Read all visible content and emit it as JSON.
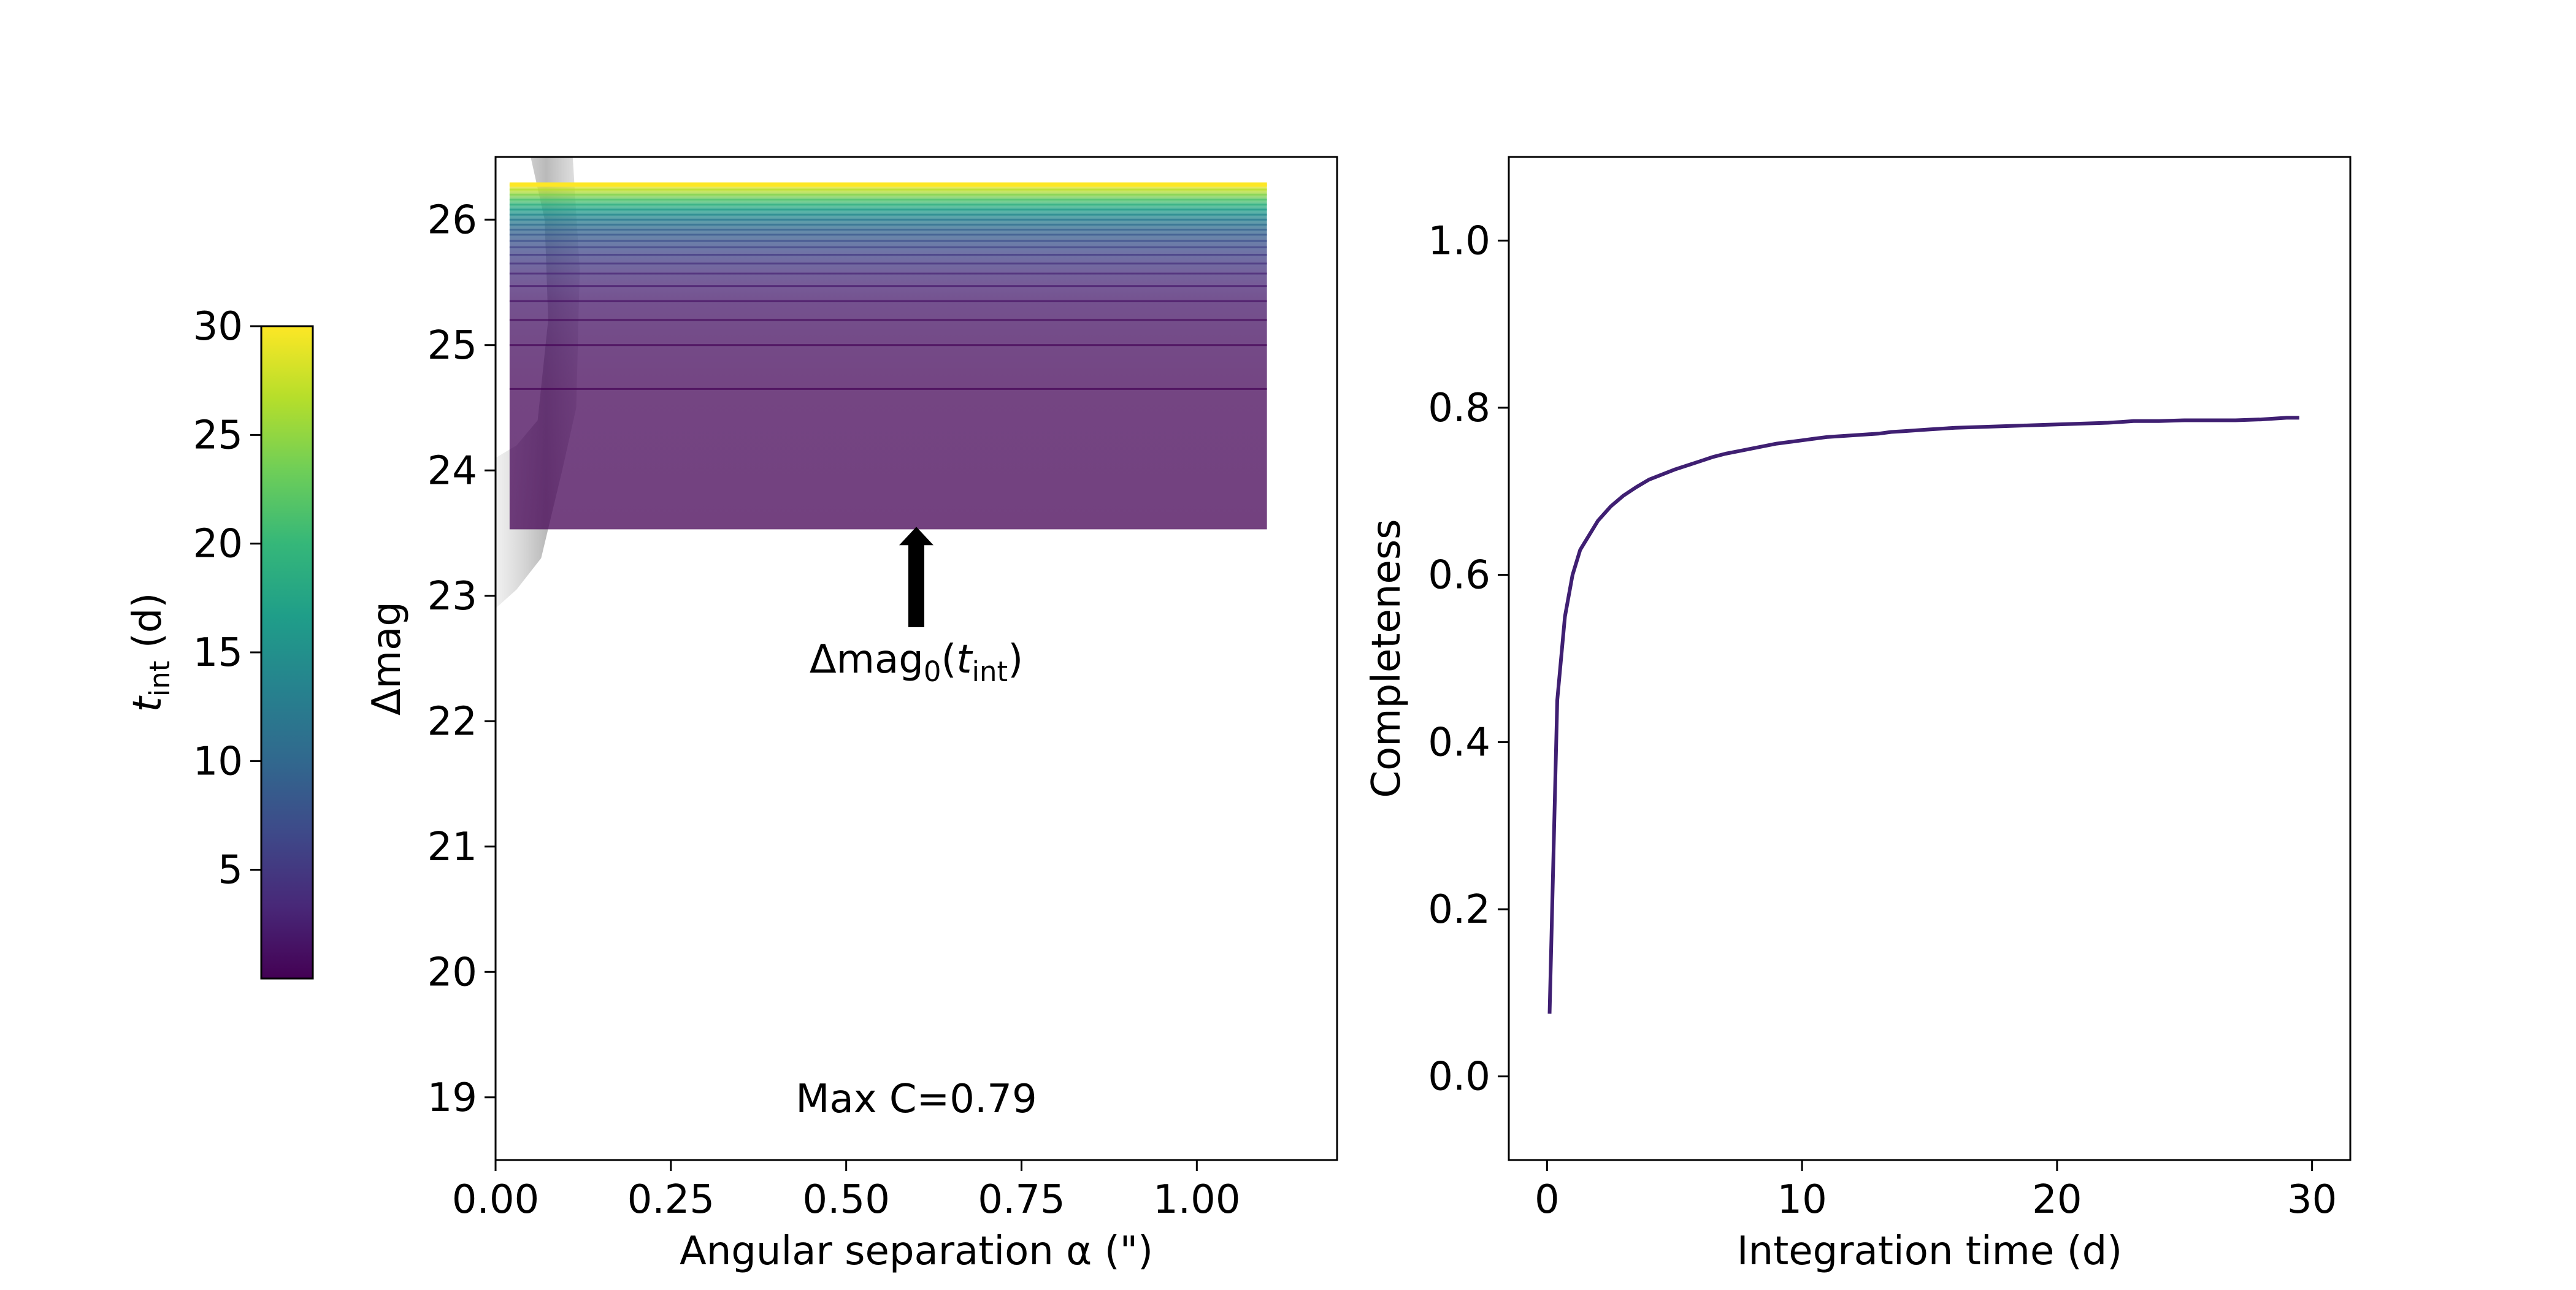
{
  "chart_data": [
    {
      "type": "heatmap",
      "xlabel": "Angular separation α  (\")",
      "ylabel": "Δmag",
      "xlim": [
        0.0,
        1.2
      ],
      "ylim": [
        18.5,
        26.5
      ],
      "xticks": [
        0.0,
        0.25,
        0.5,
        0.75,
        1.0
      ],
      "xtick_labels": [
        "0.00",
        "0.25",
        "0.50",
        "0.75",
        "1.00"
      ],
      "yticks": [
        19,
        20,
        21,
        22,
        23,
        24,
        25,
        26
      ],
      "ytick_labels": [
        "19",
        "20",
        "21",
        "22",
        "23",
        "24",
        "25",
        "26"
      ],
      "band": {
        "x_range": [
          0.02,
          1.1
        ],
        "dmag_bottom": 23.53,
        "dmag_top": 26.28,
        "stripe_levels": [
          {
            "dmag": 24.65,
            "t_int": 0.5
          },
          {
            "dmag": 25.0,
            "t_int": 1.0
          },
          {
            "dmag": 25.2,
            "t_int": 1.5
          },
          {
            "dmag": 25.35,
            "t_int": 2.0
          },
          {
            "dmag": 25.47,
            "t_int": 3.0
          },
          {
            "dmag": 25.57,
            "t_int": 4.0
          },
          {
            "dmag": 25.65,
            "t_int": 5.0
          },
          {
            "dmag": 25.72,
            "t_int": 6.0
          },
          {
            "dmag": 25.78,
            "t_int": 7.0
          },
          {
            "dmag": 25.83,
            "t_int": 8.0
          },
          {
            "dmag": 25.88,
            "t_int": 9.0
          },
          {
            "dmag": 25.92,
            "t_int": 10.0
          },
          {
            "dmag": 25.96,
            "t_int": 11.5
          },
          {
            "dmag": 26.0,
            "t_int": 13.0
          },
          {
            "dmag": 26.04,
            "t_int": 15.0
          },
          {
            "dmag": 26.08,
            "t_int": 17.0
          },
          {
            "dmag": 26.12,
            "t_int": 19.5
          },
          {
            "dmag": 26.16,
            "t_int": 22.0
          },
          {
            "dmag": 26.2,
            "t_int": 25.0
          },
          {
            "dmag": 26.24,
            "t_int": 27.5
          },
          {
            "dmag": 26.28,
            "t_int": 30.0
          }
        ]
      },
      "annotation_label": "Δmag",
      "annotation_sub": "0",
      "annotation_paren_open": "(",
      "annotation_t": "t",
      "annotation_t_sub": "int",
      "annotation_paren_close": ")",
      "annotation_arrow": {
        "x": 0.6,
        "dmag_tail": 22.75,
        "dmag_head": 23.55
      },
      "max_c_text": "Max C=0.79",
      "max_c_pos": {
        "x": 0.6,
        "dmag": 18.99
      },
      "grey_density_outline": [
        [
          0.05,
          26.5
        ],
        [
          0.11,
          26.5
        ],
        [
          0.12,
          25.6
        ],
        [
          0.115,
          24.5
        ],
        [
          0.095,
          24.0
        ],
        [
          0.065,
          23.3
        ],
        [
          0.03,
          23.05
        ],
        [
          0.0,
          22.9
        ],
        [
          0.0,
          24.1
        ],
        [
          0.03,
          24.2
        ],
        [
          0.06,
          24.4
        ],
        [
          0.075,
          25.2
        ],
        [
          0.07,
          26.0
        ],
        [
          0.05,
          26.5
        ]
      ]
    },
    {
      "type": "line",
      "xlabel": "Integration time (d)",
      "ylabel": "Completeness",
      "xlim": [
        -1.5,
        31.5
      ],
      "ylim": [
        -0.1,
        1.1
      ],
      "xticks": [
        0,
        10,
        20,
        30
      ],
      "xtick_labels": [
        "0",
        "10",
        "20",
        "30"
      ],
      "yticks": [
        0.0,
        0.2,
        0.4,
        0.6,
        0.8,
        1.0
      ],
      "ytick_labels": [
        "0.0",
        "0.2",
        "0.4",
        "0.6",
        "0.8",
        "1.0"
      ],
      "color": "#3f1f72",
      "x": [
        0.1,
        0.4,
        0.7,
        1.0,
        1.3,
        1.6,
        2.0,
        2.5,
        3.0,
        3.5,
        4.0,
        4.5,
        5.0,
        5.5,
        6.0,
        6.5,
        7.0,
        7.5,
        8.0,
        8.5,
        9.0,
        9.5,
        10.0,
        10.5,
        11.0,
        11.5,
        12.0,
        12.5,
        13.0,
        13.5,
        14.0,
        15.0,
        16.0,
        17.0,
        18.0,
        19.0,
        20.0,
        21.0,
        22.0,
        22.5,
        23.0,
        24.0,
        25.0,
        26.0,
        27.0,
        28.0,
        28.5,
        29.0,
        29.5
      ],
      "y": [
        0.075,
        0.45,
        0.55,
        0.6,
        0.63,
        0.645,
        0.665,
        0.682,
        0.695,
        0.705,
        0.714,
        0.72,
        0.726,
        0.731,
        0.736,
        0.741,
        0.745,
        0.748,
        0.751,
        0.754,
        0.757,
        0.759,
        0.761,
        0.763,
        0.765,
        0.766,
        0.767,
        0.768,
        0.769,
        0.771,
        0.772,
        0.774,
        0.776,
        0.777,
        0.778,
        0.779,
        0.78,
        0.781,
        0.782,
        0.783,
        0.784,
        0.784,
        0.785,
        0.785,
        0.785,
        0.786,
        0.787,
        0.788,
        0.788
      ]
    }
  ],
  "colorbar": {
    "label_t": "t",
    "label_sub": "int",
    "label_rest": " (d)",
    "vmin": 0,
    "vmax": 30,
    "ticks": [
      5,
      10,
      15,
      20,
      25,
      30
    ],
    "tick_labels": [
      "5",
      "10",
      "15",
      "20",
      "25",
      "30"
    ],
    "colormap": "viridis",
    "stops": [
      "#440154",
      "#482878",
      "#3e4989",
      "#31688e",
      "#26828e",
      "#1f9e89",
      "#35b779",
      "#6ece58",
      "#b5de2b",
      "#fde725"
    ]
  },
  "colors": {
    "band_fill": "#6b3c80",
    "grey_density": "#9a9a9a"
  }
}
